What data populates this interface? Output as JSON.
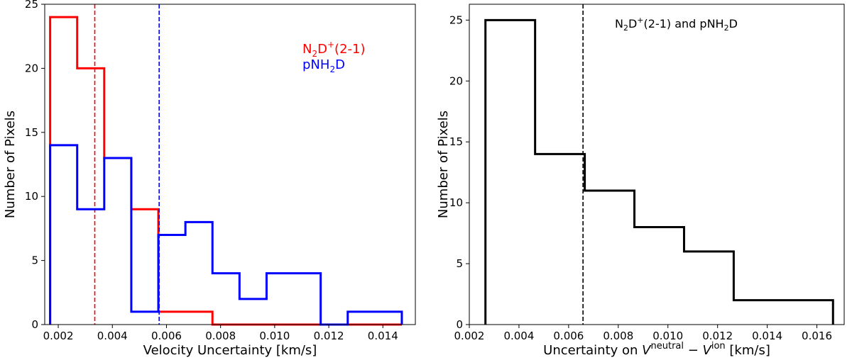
{
  "chart_data": [
    {
      "type": "histogram",
      "xlabel": "Velocity Uncertainty [km/s]",
      "ylabel": "Number of Pixels",
      "xlim": [
        0.0015,
        0.0152
      ],
      "ylim": [
        0,
        25
      ],
      "xticks": [
        0.002,
        0.004,
        0.006,
        0.008,
        0.01,
        0.012,
        0.014
      ],
      "xtick_labels": [
        "0.002",
        "0.004",
        "0.006",
        "0.008",
        "0.010",
        "0.012",
        "0.014"
      ],
      "yticks": [
        0,
        5,
        10,
        15,
        20,
        25
      ],
      "ytick_labels": [
        "0",
        "5",
        "10",
        "15",
        "20",
        "25"
      ],
      "legend_placement": "upper-right",
      "bin_edges": [
        0.0017,
        0.0027,
        0.0037,
        0.0047,
        0.0057,
        0.0067,
        0.0077,
        0.0087,
        0.0097,
        0.0107,
        0.0117,
        0.0127,
        0.0137,
        0.0147
      ],
      "series": [
        {
          "name_main": "N",
          "name_sub1": "2",
          "name_mid": "D",
          "name_sup": "+",
          "name_tail": "(2-1)",
          "color": "#ff0000",
          "counts": [
            24,
            20,
            13,
            9,
            1,
            1,
            0,
            0,
            0,
            0,
            0,
            0,
            0
          ],
          "marker_line": 0.00335
        },
        {
          "name_main": "pNH",
          "name_sub1": "2",
          "name_mid": "D",
          "name_sup": "",
          "name_tail": "",
          "color": "#0000ff",
          "counts": [
            14,
            9,
            13,
            1,
            7,
            8,
            4,
            2,
            4,
            4,
            0,
            1,
            1
          ],
          "marker_line": 0.00573
        }
      ]
    },
    {
      "type": "histogram",
      "xlabel_main": "Uncertainty on ",
      "xlabel_v1": "V",
      "xlabel_sup1": "neutral",
      "xlabel_minus": " − ",
      "xlabel_v2": "V",
      "xlabel_sup2": "ion",
      "xlabel_unit": " [km/s]",
      "ylabel": "Number of Pixels",
      "xlim": [
        0.002,
        0.0171
      ],
      "ylim": [
        0,
        26.3
      ],
      "xticks": [
        0.002,
        0.004,
        0.006,
        0.008,
        0.01,
        0.012,
        0.014,
        0.016
      ],
      "xtick_labels": [
        "0.002",
        "0.004",
        "0.006",
        "0.008",
        "0.010",
        "0.012",
        "0.014",
        "0.016"
      ],
      "yticks": [
        0,
        5,
        10,
        15,
        20,
        25
      ],
      "ytick_labels": [
        "0",
        "5",
        "10",
        "15",
        "20",
        "25"
      ],
      "annotation": {
        "n": "N",
        "sub1": "2",
        "d": "D",
        "sup": "+",
        "mid": "(2-1) and pNH",
        "sub2": "2",
        "end": "D"
      },
      "bin_edges": [
        0.00265,
        0.00465,
        0.00665,
        0.00865,
        0.01065,
        0.01265,
        0.01465,
        0.01665
      ],
      "series": [
        {
          "color": "#000000",
          "counts": [
            25,
            14,
            11,
            8,
            6,
            2,
            2
          ],
          "marker_line": 0.00658
        }
      ]
    }
  ]
}
